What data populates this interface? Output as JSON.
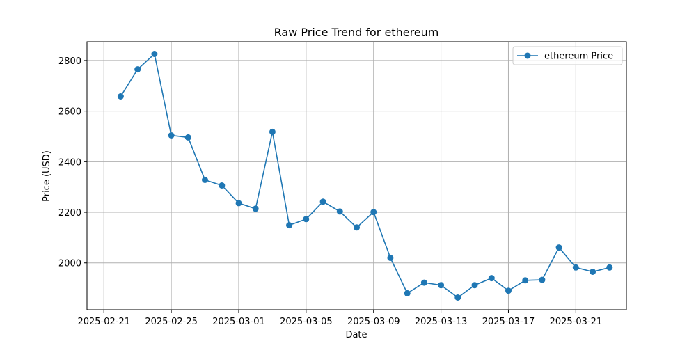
{
  "chart_data": {
    "type": "line",
    "title": "Raw Price Trend for ethereum",
    "xlabel": "Date",
    "ylabel": "Price (USD)",
    "x": [
      "2025-02-22",
      "2025-02-23",
      "2025-02-24",
      "2025-02-25",
      "2025-02-26",
      "2025-02-27",
      "2025-02-28",
      "2025-03-01",
      "2025-03-02",
      "2025-03-03",
      "2025-03-04",
      "2025-03-05",
      "2025-03-06",
      "2025-03-07",
      "2025-03-08",
      "2025-03-09",
      "2025-03-10",
      "2025-03-11",
      "2025-03-12",
      "2025-03-13",
      "2025-03-14",
      "2025-03-15",
      "2025-03-16",
      "2025-03-17",
      "2025-03-18",
      "2025-03-19",
      "2025-03-20",
      "2025-03-21",
      "2025-03-22",
      "2025-03-23"
    ],
    "series": [
      {
        "name": "ethereum Price",
        "color": "#1f77b4",
        "values": [
          2658,
          2765,
          2826,
          2504,
          2496,
          2328,
          2306,
          2236,
          2214,
          2518,
          2149,
          2173,
          2242,
          2203,
          2140,
          2201,
          2020,
          1880,
          1922,
          1912,
          1863,
          1912,
          1940,
          1890,
          1931,
          1933,
          2061,
          1982,
          1965,
          1982
        ]
      }
    ],
    "xticks": [
      "2025-02-21",
      "2025-02-25",
      "2025-03-01",
      "2025-03-05",
      "2025-03-09",
      "2025-03-13",
      "2025-03-17",
      "2025-03-21"
    ],
    "yticks": [
      2000,
      2200,
      2400,
      2600,
      2800
    ],
    "xlim": [
      "2025-02-20",
      "2025-03-24"
    ],
    "ylim": [
      1815,
      2874
    ],
    "grid": true,
    "legend": "upper right"
  }
}
